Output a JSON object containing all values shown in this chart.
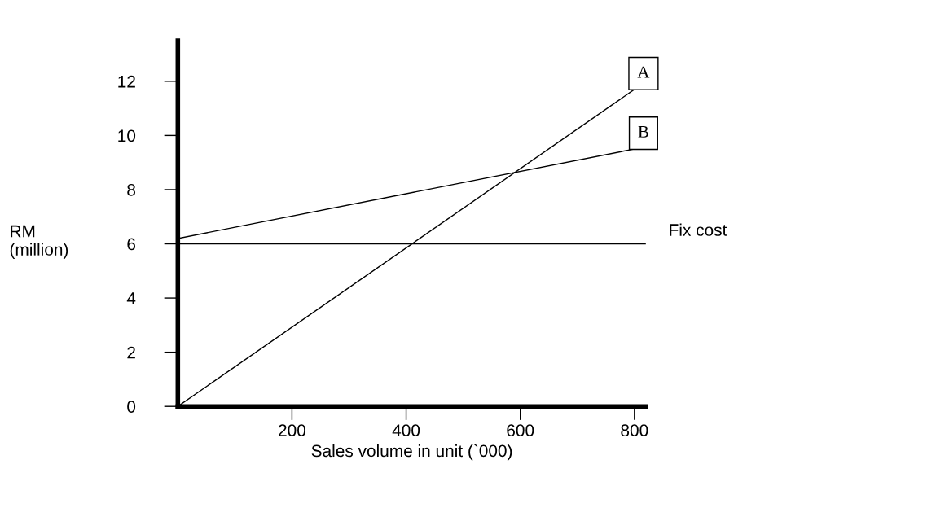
{
  "chart_data": {
    "type": "line",
    "xlabel": "Sales volume in unit (`000)",
    "ylabel": "RM\n(million)",
    "x": [
      0,
      800
    ],
    "series": [
      {
        "name": "A",
        "color": "#000000",
        "values": [
          0,
          11.7
        ]
      },
      {
        "name": "B",
        "color": "#000000",
        "values": [
          6.2,
          9.5
        ]
      }
    ],
    "ref_lines": [
      {
        "axis": "y",
        "value": 6,
        "label": "Fix cost",
        "color": "#000000"
      }
    ],
    "xlim": [
      0,
      820
    ],
    "xticks": [
      200,
      400,
      600,
      800
    ],
    "ylim": [
      0,
      13.5
    ],
    "yticks": [
      0,
      2,
      4,
      6,
      8,
      10,
      12
    ],
    "grid": false,
    "legend": false,
    "marker": "none",
    "line_style": "solid"
  }
}
